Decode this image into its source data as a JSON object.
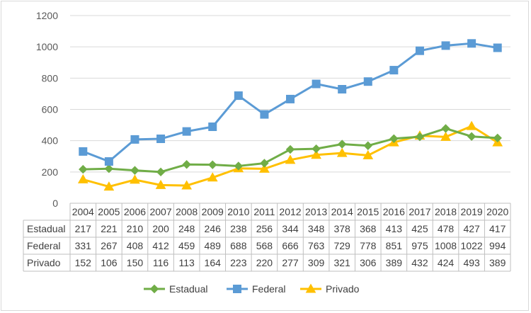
{
  "chart_data": {
    "type": "line",
    "title": "",
    "xlabel": "",
    "ylabel": "",
    "ylim": [
      0,
      1200
    ],
    "yticks": [
      0,
      200,
      400,
      600,
      800,
      1000,
      1200
    ],
    "grid": true,
    "legend_position": "bottom",
    "data_table": true,
    "categories": [
      "2004",
      "2005",
      "2006",
      "2007",
      "2008",
      "2009",
      "2010",
      "2011",
      "2012",
      "2013",
      "2014",
      "2015",
      "2016",
      "2017",
      "2018",
      "2019",
      "2020"
    ],
    "series": [
      {
        "name": "Estadual",
        "color": "#70ad47",
        "marker": "diamond",
        "values": [
          217,
          221,
          210,
          200,
          248,
          246,
          238,
          256,
          344,
          348,
          378,
          368,
          413,
          425,
          478,
          427,
          417
        ]
      },
      {
        "name": "Federal",
        "color": "#5b9bd5",
        "marker": "square",
        "values": [
          331,
          267,
          408,
          412,
          459,
          489,
          688,
          568,
          666,
          763,
          729,
          778,
          851,
          975,
          1008,
          1022,
          994
        ]
      },
      {
        "name": "Privado",
        "color": "#ffc000",
        "marker": "triangle",
        "values": [
          152,
          106,
          150,
          116,
          113,
          164,
          223,
          220,
          277,
          309,
          321,
          306,
          389,
          432,
          424,
          493,
          389
        ]
      }
    ]
  }
}
